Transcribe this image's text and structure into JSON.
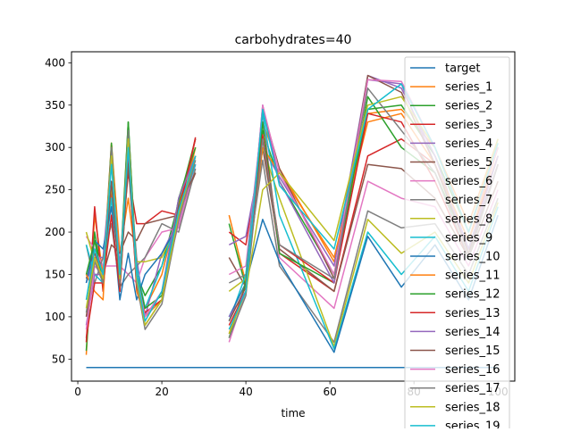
{
  "chart_data": {
    "type": "line",
    "title": "carbohydrates=40",
    "xlabel": "time",
    "ylabel": "",
    "xlim": [
      -1.5,
      104
    ],
    "ylim": [
      24,
      413
    ],
    "xticks": [
      0,
      20,
      40,
      60,
      80,
      100
    ],
    "xtick_labels": [
      "0",
      "20",
      "40",
      "60",
      "80",
      "100"
    ],
    "yticks": [
      50,
      100,
      150,
      200,
      250,
      300,
      350,
      400
    ],
    "ytick_labels": [
      "50",
      "100",
      "150",
      "200",
      "250",
      "300",
      "350",
      "400"
    ],
    "legend_position": "upper right",
    "grid": false,
    "series": [
      {
        "name": "target",
        "color": "#1f77b4",
        "x": [
          2,
          100
        ],
        "y": [
          40,
          40
        ]
      },
      {
        "name": "series_1",
        "color": "#ff7f0e",
        "x": [
          2,
          4,
          6,
          8,
          10,
          12,
          14,
          16,
          20,
          24,
          28,
          null,
          36,
          40,
          44,
          48,
          61,
          69,
          77,
          85,
          93,
          100
        ],
        "y": [
          55,
          220,
          150,
          305,
          175,
          240,
          160,
          110,
          150,
          230,
          300,
          null,
          220,
          140,
          330,
          275,
          165,
          340,
          345,
          300,
          210,
          310
        ]
      },
      {
        "name": "series_2",
        "color": "#2ca02c",
        "x": [
          2,
          4,
          6,
          8,
          10,
          12,
          14,
          16,
          20,
          24,
          28,
          null,
          36,
          40,
          44,
          48,
          61,
          69,
          77,
          85,
          93,
          100
        ],
        "y": [
          60,
          200,
          140,
          300,
          150,
          330,
          150,
          125,
          160,
          235,
          310,
          null,
          210,
          135,
          320,
          260,
          150,
          345,
          350,
          290,
          200,
          300
        ]
      },
      {
        "name": "series_3",
        "color": "#d62728",
        "x": [
          2,
          4,
          6,
          8,
          10,
          12,
          14,
          16,
          20,
          24,
          28,
          null,
          36,
          40,
          44,
          48,
          61,
          69,
          77,
          85,
          93,
          100
        ],
        "y": [
          70,
          230,
          130,
          250,
          160,
          270,
          210,
          210,
          225,
          220,
          312,
          null,
          200,
          185,
          310,
          175,
          130,
          290,
          310,
          280,
          190,
          290
        ]
      },
      {
        "name": "series_4",
        "color": "#9467bd",
        "x": [
          2,
          4,
          6,
          8,
          10,
          12,
          14,
          16,
          20,
          24,
          28,
          null,
          36,
          40,
          44,
          48,
          61,
          69,
          77,
          85,
          93,
          100
        ],
        "y": [
          140,
          170,
          170,
          280,
          160,
          290,
          170,
          100,
          175,
          215,
          280,
          null,
          185,
          195,
          300,
          265,
          160,
          385,
          370,
          290,
          180,
          280
        ]
      },
      {
        "name": "series_5",
        "color": "#8c564b",
        "x": [
          2,
          4,
          6,
          8,
          10,
          12,
          14,
          16,
          20,
          24,
          28,
          null,
          36,
          40,
          44,
          48,
          61,
          69,
          77,
          85,
          93,
          100
        ],
        "y": [
          145,
          175,
          150,
          185,
          175,
          200,
          190,
          210,
          215,
          220,
          270,
          null,
          170,
          135,
          300,
          180,
          130,
          280,
          275,
          240,
          170,
          260
        ]
      },
      {
        "name": "series_6",
        "color": "#e377c2",
        "x": [
          2,
          4,
          6,
          8,
          10,
          12,
          14,
          16,
          20,
          24,
          28,
          null,
          36,
          40,
          44,
          48,
          61,
          69,
          77,
          85,
          93,
          100
        ],
        "y": [
          195,
          180,
          160,
          160,
          160,
          150,
          140,
          170,
          200,
          205,
          280,
          null,
          150,
          160,
          340,
          170,
          110,
          260,
          240,
          230,
          160,
          250
        ]
      },
      {
        "name": "series_7",
        "color": "#7f7f7f",
        "x": [
          2,
          4,
          6,
          8,
          10,
          12,
          14,
          16,
          20,
          24,
          28,
          null,
          36,
          40,
          44,
          48,
          61,
          69,
          77,
          85,
          93,
          100
        ],
        "y": [
          185,
          140,
          170,
          210,
          135,
          150,
          160,
          170,
          210,
          200,
          275,
          null,
          140,
          150,
          285,
          160,
          70,
          225,
          205,
          210,
          150,
          240
        ]
      },
      {
        "name": "series_8",
        "color": "#bcbd22",
        "x": [
          2,
          4,
          6,
          8,
          10,
          12,
          14,
          16,
          20,
          24,
          28,
          null,
          36,
          40,
          44,
          48,
          61,
          69,
          77,
          85,
          93,
          100
        ],
        "y": [
          200,
          165,
          145,
          255,
          150,
          290,
          165,
          165,
          170,
          215,
          290,
          null,
          130,
          145,
          300,
          240,
          65,
          215,
          175,
          200,
          140,
          235
        ]
      },
      {
        "name": "series_9",
        "color": "#17becf",
        "x": [
          2,
          4,
          6,
          8,
          10,
          12,
          14,
          16,
          20,
          24,
          28,
          null,
          36,
          40,
          44,
          48,
          61,
          69,
          77,
          85,
          93,
          100
        ],
        "y": [
          185,
          150,
          140,
          240,
          150,
          300,
          160,
          110,
          160,
          220,
          280,
          null,
          95,
          150,
          340,
          220,
          62,
          200,
          150,
          195,
          130,
          230
        ]
      },
      {
        "name": "series_10",
        "color": "#1f77b4",
        "x": [
          2,
          4,
          6,
          8,
          10,
          12,
          14,
          16,
          20,
          24,
          28,
          null,
          36,
          40,
          44,
          48,
          61,
          69,
          77,
          85,
          93,
          100
        ],
        "y": [
          140,
          190,
          180,
          230,
          120,
          175,
          120,
          150,
          175,
          210,
          290,
          null,
          100,
          140,
          215,
          165,
          58,
          195,
          135,
          185,
          120,
          220
        ]
      },
      {
        "name": "series_11",
        "color": "#ff7f0e",
        "x": [
          2,
          4,
          6,
          8,
          10,
          12,
          14,
          16,
          20,
          24,
          28,
          null,
          36,
          40,
          44,
          48,
          61,
          69,
          77,
          85,
          93,
          100
        ],
        "y": [
          150,
          130,
          120,
          305,
          130,
          310,
          130,
          100,
          120,
          215,
          300,
          null,
          80,
          140,
          300,
          270,
          170,
          330,
          340,
          280,
          190,
          300
        ]
      },
      {
        "name": "series_12",
        "color": "#2ca02c",
        "x": [
          2,
          4,
          6,
          8,
          10,
          12,
          14,
          16,
          20,
          24,
          28,
          null,
          36,
          40,
          44,
          48,
          61,
          69,
          77,
          85,
          93,
          100
        ],
        "y": [
          150,
          190,
          140,
          305,
          140,
          330,
          150,
          110,
          125,
          240,
          300,
          null,
          75,
          140,
          330,
          175,
          140,
          360,
          300,
          270,
          180,
          290
        ]
      },
      {
        "name": "series_13",
        "color": "#d62728",
        "x": [
          2,
          4,
          6,
          8,
          10,
          12,
          14,
          16,
          20,
          24,
          28,
          null,
          36,
          40,
          44,
          48,
          61,
          69,
          77,
          85,
          93,
          100
        ],
        "y": [
          75,
          140,
          140,
          220,
          130,
          290,
          135,
          105,
          120,
          225,
          310,
          null,
          90,
          130,
          315,
          185,
          140,
          340,
          330,
          260,
          170,
          280
        ]
      },
      {
        "name": "series_14",
        "color": "#9467bd",
        "x": [
          2,
          4,
          6,
          8,
          10,
          12,
          14,
          16,
          20,
          24,
          28,
          null,
          36,
          40,
          44,
          48,
          61,
          69,
          77,
          85,
          93,
          100
        ],
        "y": [
          90,
          150,
          150,
          290,
          140,
          300,
          140,
          95,
          130,
          240,
          290,
          null,
          100,
          130,
          350,
          260,
          140,
          380,
          375,
          280,
          180,
          290
        ]
      },
      {
        "name": "series_15",
        "color": "#8c564b",
        "x": [
          2,
          4,
          6,
          8,
          10,
          12,
          14,
          16,
          20,
          24,
          28,
          null,
          36,
          40,
          44,
          48,
          61,
          69,
          77,
          85,
          93,
          100
        ],
        "y": [
          100,
          170,
          145,
          260,
          135,
          280,
          150,
          90,
          120,
          230,
          270,
          null,
          95,
          135,
          345,
          275,
          145,
          385,
          365,
          280,
          175,
          280
        ]
      },
      {
        "name": "series_16",
        "color": "#e377c2",
        "x": [
          2,
          4,
          6,
          8,
          10,
          12,
          14,
          16,
          20,
          24,
          28,
          null,
          36,
          40,
          44,
          48,
          61,
          69,
          77,
          85,
          93,
          100
        ],
        "y": [
          85,
          160,
          150,
          295,
          150,
          310,
          150,
          100,
          130,
          210,
          290,
          null,
          70,
          130,
          350,
          270,
          150,
          380,
          378,
          300,
          200,
          300
        ]
      },
      {
        "name": "series_17",
        "color": "#7f7f7f",
        "x": [
          2,
          4,
          6,
          8,
          10,
          12,
          14,
          16,
          20,
          24,
          28,
          null,
          36,
          40,
          44,
          48,
          61,
          69,
          77,
          85,
          93,
          100
        ],
        "y": [
          105,
          165,
          140,
          300,
          140,
          320,
          140,
          85,
          115,
          215,
          285,
          null,
          75,
          125,
          310,
          185,
          145,
          370,
          320,
          270,
          170,
          280
        ]
      },
      {
        "name": "series_18",
        "color": "#bcbd22",
        "x": [
          2,
          4,
          6,
          8,
          10,
          12,
          14,
          16,
          20,
          24,
          28,
          null,
          36,
          40,
          44,
          48,
          61,
          69,
          77,
          85,
          93,
          100
        ],
        "y": [
          110,
          170,
          145,
          290,
          145,
          310,
          145,
          90,
          120,
          220,
          290,
          null,
          80,
          130,
          250,
          270,
          190,
          350,
          360,
          300,
          200,
          310
        ]
      },
      {
        "name": "series_19",
        "color": "#17becf",
        "x": [
          2,
          4,
          6,
          8,
          10,
          12,
          14,
          16,
          20,
          24,
          28,
          null,
          36,
          40,
          44,
          48,
          61,
          69,
          77,
          85,
          93,
          100
        ],
        "y": [
          120,
          180,
          150,
          280,
          150,
          300,
          150,
          95,
          130,
          225,
          290,
          null,
          85,
          130,
          345,
          255,
          180,
          345,
          375,
          300,
          200,
          305
        ]
      }
    ]
  }
}
